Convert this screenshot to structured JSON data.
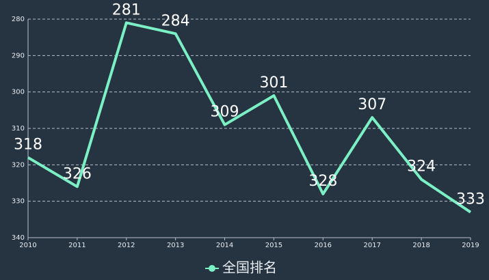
{
  "chart_data": {
    "type": "line",
    "x": [
      2010,
      2011,
      2012,
      2013,
      2014,
      2015,
      2016,
      2017,
      2018,
      2019
    ],
    "series": [
      {
        "name": "全国排名",
        "color": "#7af0c4",
        "values": [
          318,
          326,
          281,
          284,
          309,
          301,
          328,
          307,
          324,
          333
        ]
      }
    ],
    "xlim": [
      2010,
      2019
    ],
    "xticks": [
      2010,
      2011,
      2012,
      2013,
      2014,
      2015,
      2016,
      2017,
      2018,
      2019
    ],
    "ylim": [
      280,
      340
    ],
    "yticks": [
      280,
      290,
      300,
      310,
      320,
      330,
      340
    ],
    "y_inverted": true,
    "grid": true,
    "legend": "bottom"
  }
}
